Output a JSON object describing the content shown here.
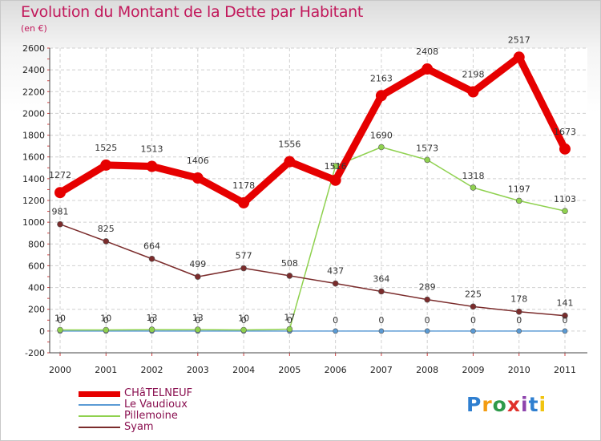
{
  "title": "Evolution du Montant de la Dette par Habitant",
  "unit": "(en €)",
  "logo": "Proxiti",
  "chart_data": {
    "type": "line",
    "x": [
      "2000",
      "2001",
      "2002",
      "2003",
      "2004",
      "2005",
      "2006",
      "2007",
      "2008",
      "2009",
      "2010",
      "2011"
    ],
    "ylim": [
      -200,
      2600
    ],
    "yticks": [
      -200,
      0,
      200,
      400,
      600,
      800,
      1000,
      1200,
      1400,
      1600,
      1800,
      2000,
      2200,
      2400,
      2600
    ],
    "grid": true,
    "legend_position": "bottom-left",
    "series": [
      {
        "name": "CHâTELNEUF",
        "color": "#e60000",
        "values": [
          1272,
          1525,
          1513,
          1406,
          1178,
          1556,
          1386,
          2163,
          2408,
          2198,
          2517,
          1673
        ],
        "labels": [
          "1272",
          "1525",
          "1513",
          "1406",
          "1178",
          "1556",
          "",
          "2163",
          "2408",
          "2198",
          "2517",
          "1673"
        ]
      },
      {
        "name": "Le Vaudioux",
        "color": "#5b9bd5",
        "values": [
          0,
          0,
          0,
          0,
          0,
          0,
          0,
          0,
          0,
          0,
          0,
          0
        ],
        "labels": [
          "0",
          "0",
          "0",
          "0",
          "0",
          "0",
          "0",
          "0",
          "0",
          "0",
          "0",
          "0"
        ]
      },
      {
        "name": "Pillemoine",
        "color": "#8fd14f",
        "values": [
          10,
          10,
          13,
          13,
          10,
          17,
          1516,
          1690,
          1573,
          1318,
          1197,
          1103
        ],
        "labels": [
          "10",
          "10",
          "13",
          "13",
          "10",
          "17",
          "1516",
          "1690",
          "1573",
          "1318",
          "1197",
          "1103"
        ]
      },
      {
        "name": "Syam",
        "color": "#7b2c2c",
        "values": [
          981,
          825,
          664,
          499,
          577,
          508,
          437,
          364,
          289,
          225,
          178,
          141
        ],
        "labels": [
          "981",
          "825",
          "664",
          "499",
          "577",
          "508",
          "437",
          "364",
          "289",
          "225",
          "178",
          "141"
        ]
      }
    ]
  }
}
